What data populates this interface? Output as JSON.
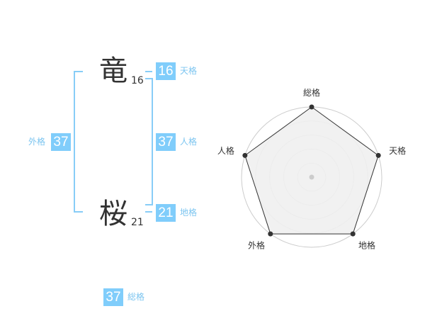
{
  "name": {
    "chars": [
      {
        "char": "竜",
        "strokes": "16"
      },
      {
        "char": "桜",
        "strokes": "21"
      }
    ]
  },
  "kaku": {
    "tenkaku": {
      "label": "天格",
      "value": "16"
    },
    "jinkaku": {
      "label": "人格",
      "value": "37"
    },
    "chikaku": {
      "label": "地格",
      "value": "21"
    },
    "gaikaku": {
      "label": "外格",
      "value": "37"
    },
    "soukaku": {
      "label": "総格",
      "value": "37"
    }
  },
  "colors": {
    "accent": "#80cdfb",
    "label": "#7cc5f0",
    "radar_fill": "#f0f0f0",
    "radar_stroke": "#333333"
  },
  "chart_data": {
    "type": "radar",
    "axes": [
      "総格",
      "天格",
      "地格",
      "外格",
      "人格"
    ],
    "values": [
      5,
      5,
      5,
      5,
      5
    ],
    "range": [
      0,
      5
    ],
    "rings": 5
  }
}
